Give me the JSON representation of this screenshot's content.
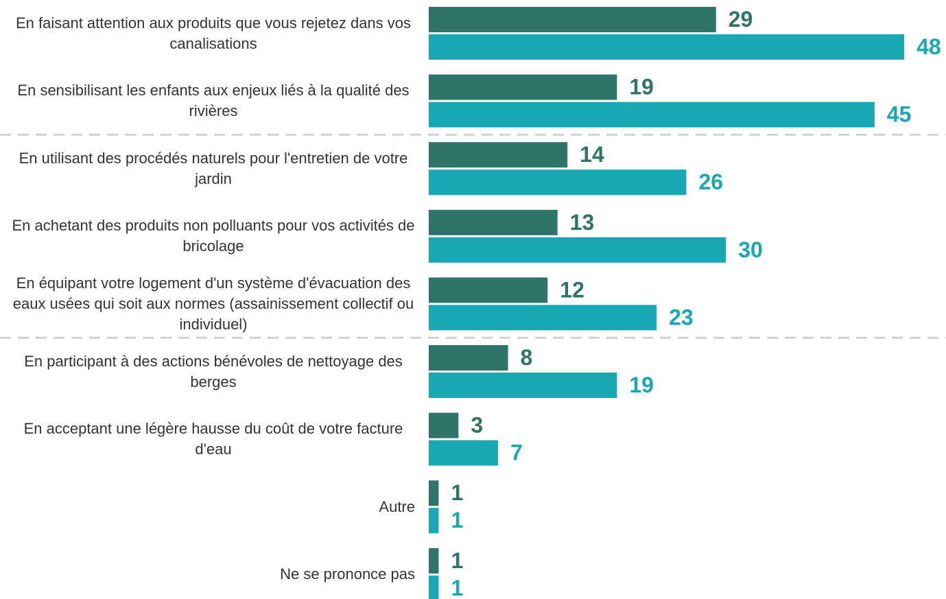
{
  "chart_data": {
    "type": "bar",
    "orientation": "horizontal",
    "categories": [
      "En faisant attention aux produits que vous rejetez dans vos canalisations",
      "En sensibilisant les enfants aux enjeux liés à la qualité des rivières",
      "En utilisant des procédés naturels pour l'entretien de votre jardin",
      "En achetant des produits non polluants pour vos activités de bricolage",
      "En équipant votre logement d'un système d'évacuation des eaux usées qui soit aux normes (assainissement collectif ou individuel)",
      "En participant à des actions bénévoles de nettoyage des berges",
      "En acceptant une légère hausse du coût de votre facture d'eau",
      "Autre",
      "Ne se prononce pas"
    ],
    "series": [
      {
        "color": "#2e7468",
        "values": [
          29,
          19,
          14,
          13,
          12,
          8,
          3,
          1,
          1
        ]
      },
      {
        "color": "#17a8b4",
        "values": [
          48,
          45,
          26,
          30,
          23,
          19,
          7,
          1,
          1
        ]
      }
    ]
  }
}
